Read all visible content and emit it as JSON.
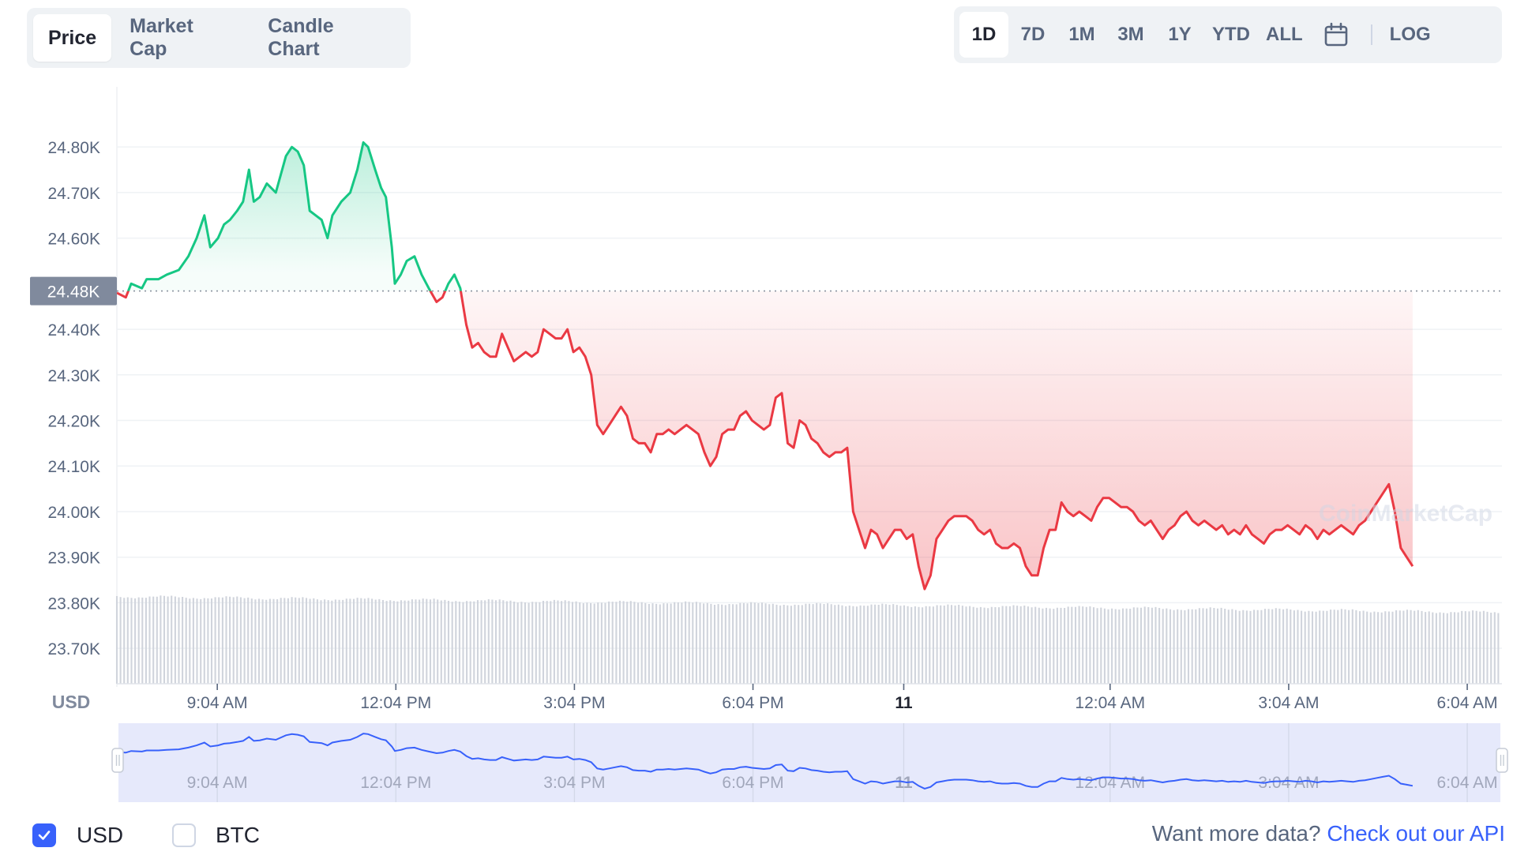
{
  "tabs": [
    {
      "label": "Price",
      "active": true
    },
    {
      "label": "Market Cap",
      "active": false
    },
    {
      "label": "Candle Chart",
      "active": false
    }
  ],
  "ranges": [
    {
      "label": "1D",
      "active": true
    },
    {
      "label": "7D",
      "active": false
    },
    {
      "label": "1M",
      "active": false
    },
    {
      "label": "3M",
      "active": false
    },
    {
      "label": "1Y",
      "active": false
    },
    {
      "label": "YTD",
      "active": false
    },
    {
      "label": "ALL",
      "active": false
    }
  ],
  "calendar_icon": "calendar-icon",
  "log_label": "LOG",
  "chart_data": {
    "type": "line",
    "currency": "USD",
    "watermark": "CoinMarketCap",
    "ylim": [
      23650,
      24880
    ],
    "y_ticks": [
      {
        "value": 24800,
        "label": "24.80K"
      },
      {
        "value": 24700,
        "label": "24.70K"
      },
      {
        "value": 24600,
        "label": "24.60K"
      },
      {
        "value": 24400,
        "label": "24.40K"
      },
      {
        "value": 24300,
        "label": "24.30K"
      },
      {
        "value": 24200,
        "label": "24.20K"
      },
      {
        "value": 24100,
        "label": "24.10K"
      },
      {
        "value": 24000,
        "label": "24.00K"
      },
      {
        "value": 23900,
        "label": "23.90K"
      },
      {
        "value": 23800,
        "label": "23.80K"
      },
      {
        "value": 23700,
        "label": "23.70K"
      }
    ],
    "reference": {
      "value": 24484,
      "label": "24.48K"
    },
    "x_hours_range": [
      7.38,
      30.65
    ],
    "x_ticks": [
      {
        "hours": 9.067,
        "label": "9:04 AM",
        "bold": false
      },
      {
        "hours": 12.067,
        "label": "12:04 PM",
        "bold": false
      },
      {
        "hours": 15.067,
        "label": "3:04 PM",
        "bold": false
      },
      {
        "hours": 18.067,
        "label": "6:04 PM",
        "bold": false
      },
      {
        "hours": 20.6,
        "label": "11",
        "bold": true
      },
      {
        "hours": 24.067,
        "label": "12:04 AM",
        "bold": false
      },
      {
        "hours": 27.067,
        "label": "3:04 AM",
        "bold": false
      },
      {
        "hours": 30.067,
        "label": "6:04 AM",
        "bold": false
      }
    ],
    "price_points": [
      [
        7.38,
        24480
      ],
      [
        7.53,
        24470
      ],
      [
        7.62,
        24500
      ],
      [
        7.8,
        24490
      ],
      [
        7.88,
        24510
      ],
      [
        8.08,
        24510
      ],
      [
        8.22,
        24520
      ],
      [
        8.42,
        24530
      ],
      [
        8.58,
        24560
      ],
      [
        8.72,
        24600
      ],
      [
        8.85,
        24650
      ],
      [
        8.95,
        24580
      ],
      [
        9.08,
        24600
      ],
      [
        9.18,
        24630
      ],
      [
        9.28,
        24640
      ],
      [
        9.4,
        24660
      ],
      [
        9.5,
        24680
      ],
      [
        9.6,
        24750
      ],
      [
        9.68,
        24680
      ],
      [
        9.78,
        24690
      ],
      [
        9.9,
        24720
      ],
      [
        10.05,
        24700
      ],
      [
        10.22,
        24780
      ],
      [
        10.32,
        24800
      ],
      [
        10.42,
        24790
      ],
      [
        10.52,
        24760
      ],
      [
        10.62,
        24660
      ],
      [
        10.72,
        24650
      ],
      [
        10.82,
        24640
      ],
      [
        10.92,
        24600
      ],
      [
        11.0,
        24650
      ],
      [
        11.15,
        24680
      ],
      [
        11.3,
        24700
      ],
      [
        11.42,
        24750
      ],
      [
        11.52,
        24810
      ],
      [
        11.6,
        24800
      ],
      [
        11.72,
        24750
      ],
      [
        11.82,
        24710
      ],
      [
        11.9,
        24690
      ],
      [
        12.0,
        24580
      ],
      [
        12.05,
        24500
      ],
      [
        12.15,
        24520
      ],
      [
        12.25,
        24550
      ],
      [
        12.38,
        24560
      ],
      [
        12.5,
        24520
      ],
      [
        12.62,
        24490
      ],
      [
        12.75,
        24460
      ],
      [
        12.85,
        24470
      ],
      [
        12.95,
        24500
      ],
      [
        13.05,
        24520
      ],
      [
        13.15,
        24490
      ],
      [
        13.25,
        24410
      ],
      [
        13.35,
        24360
      ],
      [
        13.45,
        24370
      ],
      [
        13.55,
        24350
      ],
      [
        13.65,
        24340
      ],
      [
        13.75,
        24340
      ],
      [
        13.85,
        24390
      ],
      [
        13.95,
        24360
      ],
      [
        14.05,
        24330
      ],
      [
        14.15,
        24340
      ],
      [
        14.25,
        24350
      ],
      [
        14.35,
        24340
      ],
      [
        14.45,
        24350
      ],
      [
        14.55,
        24400
      ],
      [
        14.65,
        24390
      ],
      [
        14.75,
        24380
      ],
      [
        14.85,
        24380
      ],
      [
        14.95,
        24400
      ],
      [
        15.05,
        24350
      ],
      [
        15.15,
        24360
      ],
      [
        15.25,
        24340
      ],
      [
        15.35,
        24300
      ],
      [
        15.45,
        24190
      ],
      [
        15.55,
        24170
      ],
      [
        15.65,
        24190
      ],
      [
        15.75,
        24210
      ],
      [
        15.85,
        24230
      ],
      [
        15.95,
        24210
      ],
      [
        16.05,
        24160
      ],
      [
        16.15,
        24150
      ],
      [
        16.25,
        24150
      ],
      [
        16.35,
        24130
      ],
      [
        16.45,
        24170
      ],
      [
        16.55,
        24170
      ],
      [
        16.65,
        24180
      ],
      [
        16.75,
        24170
      ],
      [
        16.85,
        24180
      ],
      [
        16.95,
        24190
      ],
      [
        17.05,
        24180
      ],
      [
        17.15,
        24170
      ],
      [
        17.25,
        24130
      ],
      [
        17.35,
        24100
      ],
      [
        17.45,
        24120
      ],
      [
        17.55,
        24170
      ],
      [
        17.65,
        24180
      ],
      [
        17.75,
        24180
      ],
      [
        17.85,
        24210
      ],
      [
        17.95,
        24220
      ],
      [
        18.05,
        24200
      ],
      [
        18.15,
        24190
      ],
      [
        18.25,
        24180
      ],
      [
        18.35,
        24190
      ],
      [
        18.45,
        24250
      ],
      [
        18.55,
        24260
      ],
      [
        18.65,
        24150
      ],
      [
        18.75,
        24140
      ],
      [
        18.85,
        24200
      ],
      [
        18.95,
        24190
      ],
      [
        19.05,
        24160
      ],
      [
        19.15,
        24150
      ],
      [
        19.25,
        24130
      ],
      [
        19.35,
        24120
      ],
      [
        19.45,
        24130
      ],
      [
        19.55,
        24130
      ],
      [
        19.65,
        24140
      ],
      [
        19.75,
        24000
      ],
      [
        19.85,
        23960
      ],
      [
        19.95,
        23920
      ],
      [
        20.05,
        23960
      ],
      [
        20.15,
        23950
      ],
      [
        20.25,
        23920
      ],
      [
        20.35,
        23940
      ],
      [
        20.45,
        23960
      ],
      [
        20.55,
        23960
      ],
      [
        20.65,
        23940
      ],
      [
        20.75,
        23950
      ],
      [
        20.85,
        23880
      ],
      [
        20.95,
        23830
      ],
      [
        21.05,
        23860
      ],
      [
        21.15,
        23940
      ],
      [
        21.25,
        23960
      ],
      [
        21.35,
        23980
      ],
      [
        21.45,
        23990
      ],
      [
        21.55,
        23990
      ],
      [
        21.65,
        23990
      ],
      [
        21.75,
        23980
      ],
      [
        21.85,
        23960
      ],
      [
        21.95,
        23950
      ],
      [
        22.05,
        23960
      ],
      [
        22.15,
        23930
      ],
      [
        22.25,
        23920
      ],
      [
        22.35,
        23920
      ],
      [
        22.45,
        23930
      ],
      [
        22.55,
        23920
      ],
      [
        22.65,
        23880
      ],
      [
        22.75,
        23860
      ],
      [
        22.85,
        23860
      ],
      [
        22.95,
        23920
      ],
      [
        23.05,
        23960
      ],
      [
        23.15,
        23960
      ],
      [
        23.25,
        24020
      ],
      [
        23.35,
        24000
      ],
      [
        23.45,
        23990
      ],
      [
        23.55,
        24000
      ],
      [
        23.65,
        23990
      ],
      [
        23.75,
        23980
      ],
      [
        23.85,
        24010
      ],
      [
        23.95,
        24030
      ],
      [
        24.05,
        24030
      ],
      [
        24.15,
        24020
      ],
      [
        24.25,
        24010
      ],
      [
        24.35,
        24010
      ],
      [
        24.45,
        24000
      ],
      [
        24.55,
        23980
      ],
      [
        24.65,
        23970
      ],
      [
        24.75,
        23980
      ],
      [
        24.85,
        23960
      ],
      [
        24.95,
        23940
      ],
      [
        25.05,
        23960
      ],
      [
        25.15,
        23970
      ],
      [
        25.25,
        23990
      ],
      [
        25.35,
        24000
      ],
      [
        25.45,
        23980
      ],
      [
        25.55,
        23970
      ],
      [
        25.65,
        23980
      ],
      [
        25.75,
        23970
      ],
      [
        25.85,
        23960
      ],
      [
        25.95,
        23970
      ],
      [
        26.05,
        23950
      ],
      [
        26.15,
        23960
      ],
      [
        26.25,
        23950
      ],
      [
        26.35,
        23970
      ],
      [
        26.45,
        23950
      ],
      [
        26.55,
        23940
      ],
      [
        26.65,
        23930
      ],
      [
        26.75,
        23950
      ],
      [
        26.85,
        23960
      ],
      [
        26.95,
        23960
      ],
      [
        27.05,
        23970
      ],
      [
        27.15,
        23960
      ],
      [
        27.25,
        23950
      ],
      [
        27.35,
        23970
      ],
      [
        27.45,
        23960
      ],
      [
        27.55,
        23940
      ],
      [
        27.65,
        23960
      ],
      [
        27.75,
        23950
      ],
      [
        27.85,
        23960
      ],
      [
        27.95,
        23970
      ],
      [
        28.05,
        23960
      ],
      [
        28.15,
        23950
      ],
      [
        28.25,
        23970
      ],
      [
        28.35,
        23980
      ],
      [
        28.45,
        24000
      ],
      [
        28.55,
        24020
      ],
      [
        28.65,
        24040
      ],
      [
        28.75,
        24060
      ],
      [
        28.85,
        24000
      ],
      [
        28.95,
        23920
      ],
      [
        29.05,
        23900
      ],
      [
        29.15,
        23880
      ]
    ],
    "navigator_ticks": [
      "9:04 AM",
      "12:04 PM",
      "3:04 PM",
      "6:04 PM",
      "11",
      "12:04 AM",
      "3:04 AM",
      "6:04 AM"
    ]
  },
  "footer": {
    "usd_label": "USD",
    "usd_checked": true,
    "btc_label": "BTC",
    "btc_checked": false,
    "api_prefix": "Want more data?",
    "api_link": "Check out our API"
  },
  "colors": {
    "up": "#16c784",
    "down": "#ea3943",
    "accent": "#3861fb"
  }
}
